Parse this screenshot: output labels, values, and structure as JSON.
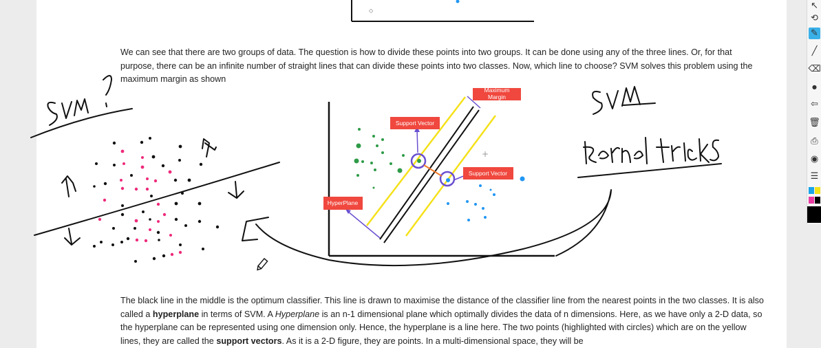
{
  "article": {
    "para1": "We can see that there are two groups of data. The question is how to divide these points into two groups. It can be done using any of the three lines. Or, for that purpose, there can be an infinite number of straight lines that can divide these points into two classes. Now, which line to choose? SVM solves this problem using the maximum margin as shown",
    "para2": {
      "t1": "The black line in the middle is the optimum classifier. This line is drawn to maximise the distance of the classifier line from the nearest points in the two classes. It is also called a ",
      "b1": "hyperplane",
      "t2": " in terms of SVM. A ",
      "i1": "Hyperplane",
      "t3": " is an n-1 dimensional plane which optimally divides the data of n dimensions. Here, as we have only a 2-D data, so the hyperplane can be represented using one dimension only. Hence, the hyperplane is a line here. The two points (highlighted with circles) which are on the yellow lines, they are called the ",
      "b2": "support vectors",
      "t4": ". As it is a 2-D figure, they are points. In a multi-dimensional space, they will be"
    }
  },
  "figure": {
    "labels": {
      "maximum_margin_1": "Maximum",
      "maximum_margin_2": "Margin",
      "support_vector_top": "Support Vector",
      "support_vector_right": "Support Vector",
      "hyperplane": "HyperPlane"
    },
    "colors": {
      "label_bg": "#f0483e",
      "margin_line": "#f5e11a",
      "class_a": "#2e9b47",
      "class_b": "#2196f3",
      "circle": "#6a4fd0",
      "connector": "#f07a2a"
    }
  },
  "annotations": {
    "handwriting": [
      "SVM?",
      "SVM",
      "kernel tricks"
    ],
    "dot_colors": {
      "pink": "#ef2a7b",
      "black": "#111111"
    }
  },
  "toolbar": {
    "tools": [
      "pointer-icon",
      "lasso-icon",
      "highlighter-icon",
      "pen-icon",
      "eraser-icon",
      "undo-icon",
      "delete-icon",
      "print-icon",
      "camera-icon",
      "notes-icon"
    ],
    "colors": [
      "#1aa3e8",
      "#f2e21a",
      "#e83aa0",
      "#000000"
    ]
  }
}
